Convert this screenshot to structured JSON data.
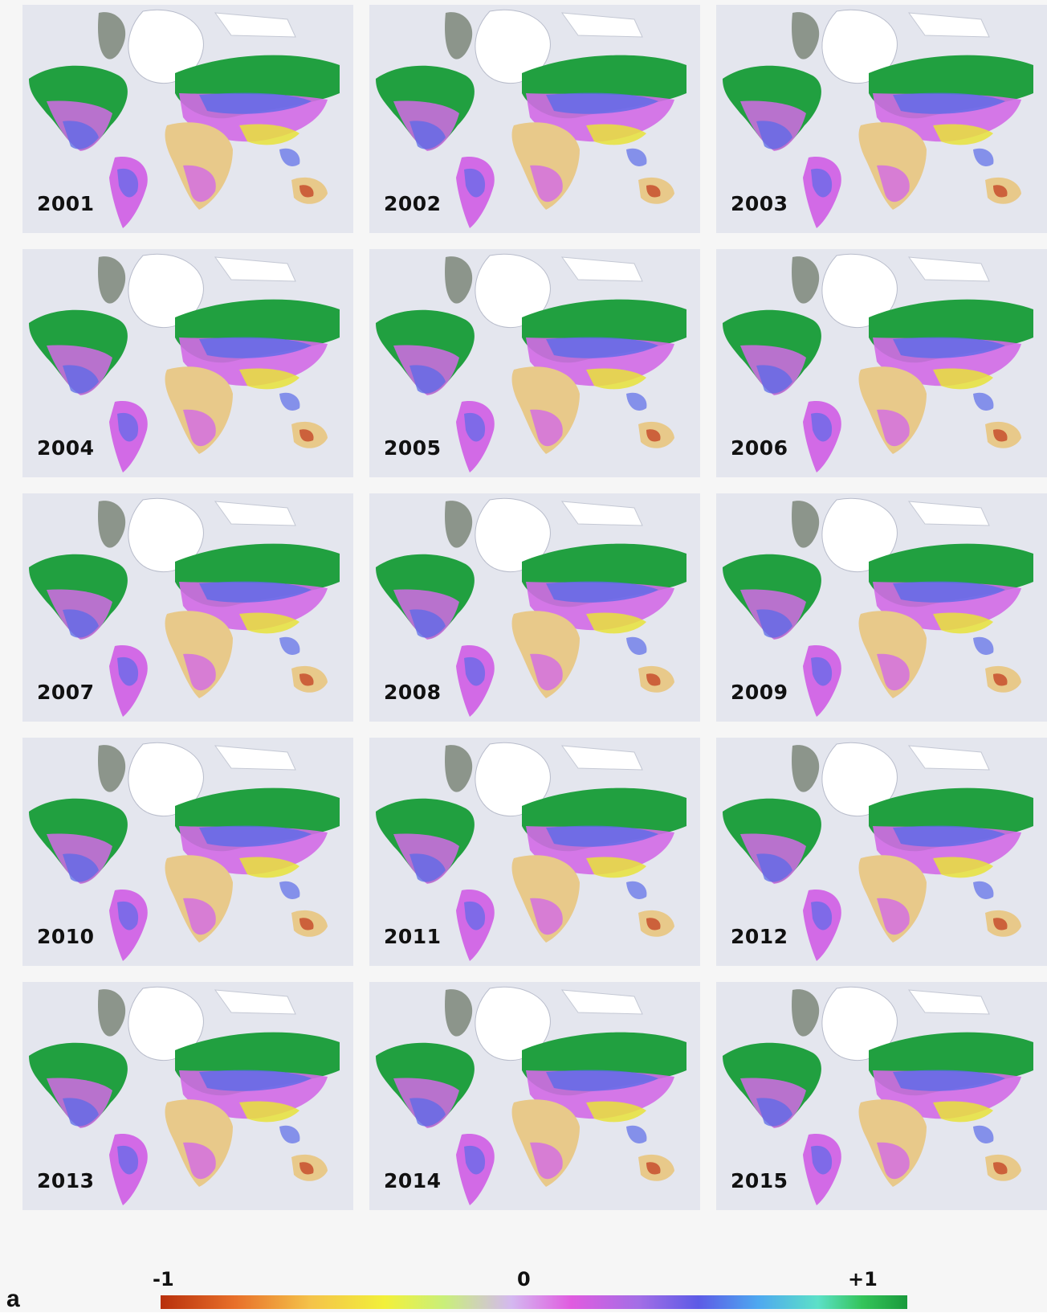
{
  "figure": {
    "panel_letter": "a",
    "years": [
      "2001",
      "2002",
      "2003",
      "2004",
      "2005",
      "2006",
      "2007",
      "2008",
      "2009",
      "2010",
      "2011",
      "2012",
      "2013",
      "2014",
      "2015"
    ],
    "colorbar": {
      "min_label": "-1",
      "mid_label": "0",
      "max_label": "+1"
    },
    "colors": {
      "ice": "#e4e6ee",
      "greenland_rock": "#6f7a6a",
      "boreal_green": "#21a040",
      "blue": "#5b6be8",
      "magenta": "#d26ae6",
      "desert": "#e8c98a",
      "yellow": "#e8e23a",
      "red": "#c0341a"
    }
  }
}
